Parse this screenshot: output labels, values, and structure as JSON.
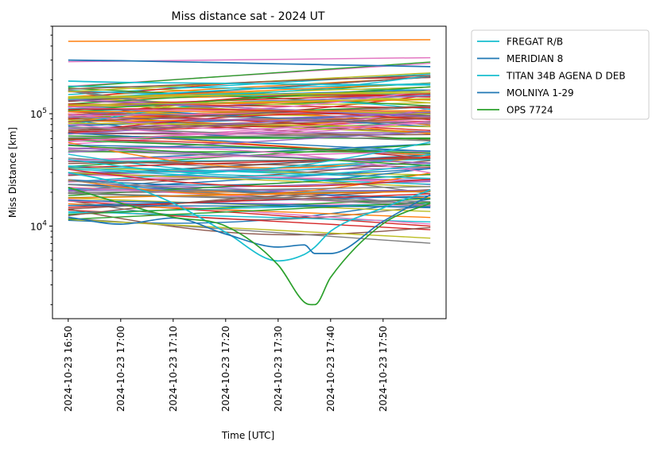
{
  "chart_data": {
    "type": "line",
    "title": "Miss distance sat - 2024 UT",
    "xlabel": "Time [UTC]",
    "ylabel": "Miss Distance [km]",
    "yscale": "log",
    "ylim": [
      1500,
      600000
    ],
    "xlim": [
      "2024-10-23 16:47",
      "2024-10-23 18:02"
    ],
    "x_ticks": [
      "2024-10-23 16:50",
      "2024-10-23 17:00",
      "2024-10-23 17:10",
      "2024-10-23 17:20",
      "2024-10-23 17:30",
      "2024-10-23 17:40",
      "2024-10-23 17:50"
    ],
    "y_ticks": [
      {
        "value": 10000,
        "base": "10",
        "exp": "4"
      },
      {
        "value": 100000,
        "base": "10",
        "exp": "5"
      }
    ],
    "grid": false,
    "legend_position": "outside-top-right",
    "x": [
      "2024-10-23 16:50",
      "2024-10-23 17:00",
      "2024-10-23 17:10",
      "2024-10-23 17:20",
      "2024-10-23 17:30",
      "2024-10-23 17:35",
      "2024-10-23 17:37",
      "2024-10-23 17:40",
      "2024-10-23 17:50",
      "2024-10-23 17:59"
    ],
    "series": [
      {
        "name": "FREGAT R/B",
        "color": "#17becf",
        "values": [
          30000,
          24000,
          16000,
          8800,
          4900,
          5600,
          6500,
          9000,
          14500,
          21000
        ]
      },
      {
        "name": "MERIDIAN 8",
        "color": "#1f77b4",
        "values": [
          12000,
          10400,
          11800,
          8500,
          6500,
          6800,
          5700,
          5700,
          11000,
          19000
        ]
      },
      {
        "name": "TITAN 34B AGENA D DEB",
        "color": "#17becf",
        "values": [
          195000,
          190000,
          188000,
          186000,
          184000,
          183000,
          183000,
          182000,
          181000,
          180000
        ]
      },
      {
        "name": "MOLNIYA 1-29",
        "color": "#1f77b4",
        "values": [
          300000,
          296000,
          290000,
          284000,
          278000,
          275000,
          274000,
          272000,
          267000,
          262000
        ]
      },
      {
        "name": "OPS 7724",
        "color": "#2ca02c",
        "values": [
          22000,
          16000,
          12000,
          10000,
          4500,
          2100,
          2000,
          3500,
          10500,
          16000
        ]
      }
    ]
  }
}
